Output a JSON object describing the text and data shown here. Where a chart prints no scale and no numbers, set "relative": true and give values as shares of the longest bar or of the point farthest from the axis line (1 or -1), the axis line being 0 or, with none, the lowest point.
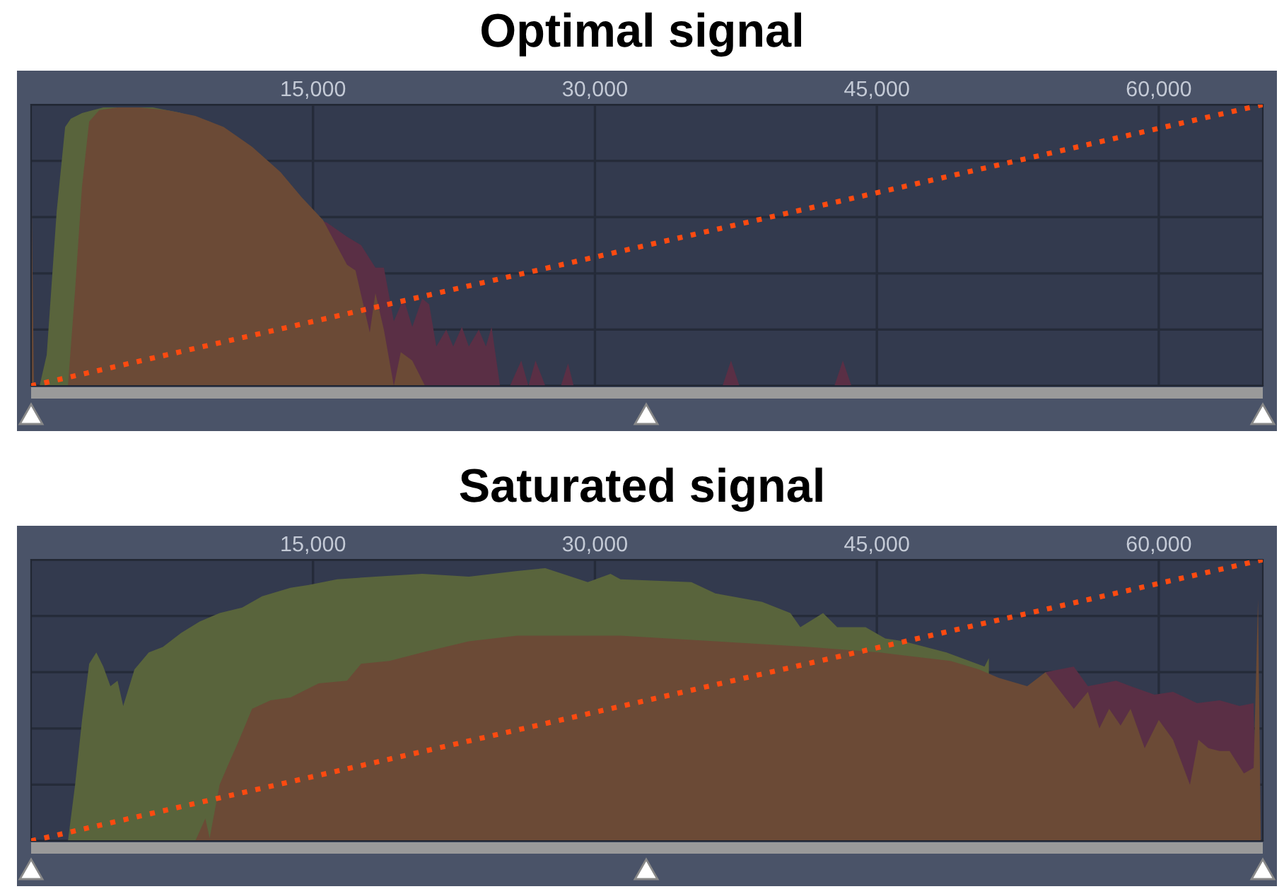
{
  "chart_data": [
    {
      "type": "area",
      "title": "Optimal signal",
      "relative": true,
      "xlim": [
        0,
        65535
      ],
      "xticks": [
        {
          "value": 15000,
          "label": "15,000"
        },
        {
          "value": 30000,
          "label": "30,000"
        },
        {
          "value": 45000,
          "label": "45,000"
        },
        {
          "value": 60000,
          "label": "60,000"
        }
      ],
      "grid": true,
      "series": [
        {
          "type": "area",
          "color": "#5a2f45",
          "x": [
            15380,
            15750,
            16810,
            17560,
            18320,
            18770,
            19300,
            19820,
            20280,
            20810,
            21180,
            21560,
            22090,
            22460,
            22920,
            23290,
            23820,
            24200,
            24500,
            24950,
            25480,
            26080,
            26460,
            26840,
            27360,
            28190,
            28570,
            28870,
            36790,
            37240,
            37690,
            42740,
            43190,
            43650
          ],
          "values": [
            0.59,
            0.58,
            0.53,
            0.5,
            0.42,
            0.42,
            0.23,
            0.31,
            0.21,
            0.31,
            0.29,
            0.14,
            0.2,
            0.14,
            0.21,
            0.14,
            0.2,
            0.14,
            0.21,
            0,
            0,
            0.09,
            0,
            0.09,
            0,
            0,
            0.08,
            0,
            0,
            0.09,
            0,
            0,
            0.09,
            0
          ]
        },
        {
          "type": "area",
          "color": "#59643c",
          "x": [
            450,
            830,
            1360,
            1810,
            2110,
            2710,
            3840,
            4980,
            6480,
            7990,
            9500,
            11010,
            12510
          ],
          "values": [
            0,
            0.11,
            0.62,
            0.92,
            0.95,
            0.97,
            0.99,
            0.99,
            0.99,
            0.97,
            0.94,
            0.88,
            0.8
          ]
        },
        {
          "type": "area",
          "color": "#6b4a36",
          "x": [
            0,
            150,
            1960,
            2340,
            2710,
            3090,
            3620,
            4600,
            5730,
            7240,
            8740,
            10250,
            11760,
            13270,
            14400,
            15530,
            16810,
            17260,
            18020,
            18320,
            18770,
            19300,
            19670,
            20280,
            20960
          ],
          "values": [
            0.84,
            0,
            0,
            0.34,
            0.71,
            0.94,
            0.98,
            0.99,
            0.99,
            0.98,
            0.96,
            0.92,
            0.85,
            0.76,
            0.67,
            0.59,
            0.43,
            0.41,
            0.19,
            0.33,
            0.2,
            0,
            0.12,
            0.09,
            0
          ]
        },
        {
          "type": "line",
          "color": "#ff4a10",
          "line_style": "dotted",
          "x": [
            0,
            65535
          ],
          "values": [
            0,
            1
          ]
        }
      ]
    },
    {
      "type": "area",
      "title": "Saturated signal",
      "relative": true,
      "xlim": [
        0,
        65535
      ],
      "xticks": [
        {
          "value": 15000,
          "label": "15,000"
        },
        {
          "value": 30000,
          "label": "30,000"
        },
        {
          "value": 45000,
          "label": "45,000"
        },
        {
          "value": 60000,
          "label": "60,000"
        }
      ],
      "grid": true,
      "series": [
        {
          "type": "area",
          "color": "#5a2f45",
          "x": [
            53970,
            55480,
            56230,
            57740,
            58500,
            59780,
            60760,
            62040,
            63240,
            64300,
            65050,
            65200
          ],
          "values": [
            0.6,
            0.62,
            0.55,
            0.57,
            0.55,
            0.52,
            0.53,
            0.49,
            0.5,
            0.48,
            0.49,
            0
          ]
        },
        {
          "type": "area",
          "color": "#59643c",
          "x": [
            1960,
            2340,
            2710,
            3090,
            3470,
            3840,
            4220,
            4600,
            4900,
            5500,
            6260,
            7010,
            7990,
            8970,
            10030,
            11230,
            12290,
            13800,
            14770,
            16280,
            18320,
            20810,
            23290,
            25860,
            27360,
            29620,
            30830,
            31360,
            35130,
            36410,
            38900,
            40400,
            40930,
            42140,
            42890,
            44400,
            45450,
            46430,
            48700,
            50730,
            50960
          ],
          "values": [
            0,
            0.2,
            0.43,
            0.63,
            0.67,
            0.62,
            0.55,
            0.57,
            0.48,
            0.61,
            0.67,
            0.69,
            0.74,
            0.78,
            0.81,
            0.83,
            0.87,
            0.9,
            0.91,
            0.93,
            0.94,
            0.95,
            0.94,
            0.96,
            0.97,
            0.92,
            0.95,
            0.93,
            0.92,
            0.88,
            0.85,
            0.81,
            0.76,
            0.81,
            0.76,
            0.76,
            0.72,
            0.71,
            0.67,
            0.62,
            0.65
          ]
        },
        {
          "type": "area",
          "color": "#6b4a36",
          "x": [
            8740,
            9270,
            9500,
            10030,
            10480,
            11010,
            11760,
            12740,
            13800,
            15300,
            16810,
            17560,
            19070,
            20810,
            23290,
            25860,
            28340,
            31360,
            36410,
            41380,
            45150,
            48920,
            50430,
            51490,
            53000,
            53970,
            55480,
            56230,
            56840,
            57360,
            57970,
            58500,
            59250,
            60000,
            60760,
            61660,
            62110,
            62640,
            63240,
            63770,
            64530,
            65050,
            65280,
            65430
          ],
          "values": [
            0,
            0.08,
            0.01,
            0.2,
            0.27,
            0.35,
            0.47,
            0.5,
            0.51,
            0.56,
            0.57,
            0.63,
            0.64,
            0.67,
            0.71,
            0.73,
            0.73,
            0.73,
            0.71,
            0.69,
            0.67,
            0.64,
            0.61,
            0.58,
            0.55,
            0.6,
            0.47,
            0.53,
            0.4,
            0.47,
            0.41,
            0.47,
            0.33,
            0.43,
            0.36,
            0.2,
            0.36,
            0.33,
            0.32,
            0.32,
            0.24,
            0.26,
            0.86,
            0
          ]
        },
        {
          "type": "line",
          "color": "#ff4a10",
          "line_style": "dotted",
          "x": [
            0,
            65535
          ],
          "values": [
            0,
            1
          ]
        }
      ]
    }
  ]
}
